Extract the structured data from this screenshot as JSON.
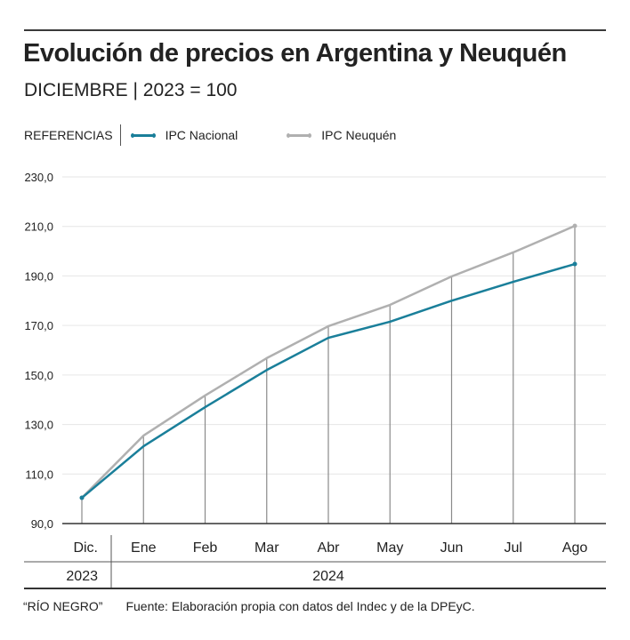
{
  "header": {
    "title": "Evolución de precios en Argentina y Neuquén",
    "subtitle": "DICIEMBRE | 2023 = 100"
  },
  "legend": {
    "label": "REFERENCIAS",
    "items": [
      {
        "name": "IPC Nacional",
        "color": "#1a7f9a"
      },
      {
        "name": "IPC Neuquén",
        "color": "#b0b0b0"
      }
    ]
  },
  "chart_data": {
    "type": "line",
    "title": "Evolución de precios en Argentina y Neuquén",
    "subtitle": "DICIEMBRE | 2023 = 100",
    "categories": [
      "Dic.",
      "Ene",
      "Feb",
      "Mar",
      "Abr",
      "May",
      "Jun",
      "Jul",
      "Ago"
    ],
    "year_groups": [
      {
        "label": "2023",
        "span": 1
      },
      {
        "label": "2024",
        "span": 8
      }
    ],
    "series": [
      {
        "name": "IPC Nacional",
        "color": "#1a7f9a",
        "values": [
          100.4,
          121.2,
          137.0,
          152.0,
          165.0,
          171.5,
          180.0,
          187.6,
          194.8
        ]
      },
      {
        "name": "IPC Neuquén",
        "color": "#b0b0b0",
        "values": [
          100.4,
          125.5,
          141.7,
          156.8,
          169.7,
          178.3,
          189.8,
          199.5,
          210.2
        ]
      }
    ],
    "y_ticks": [
      "230,0",
      "210,0",
      "190,0",
      "170,0",
      "150,0",
      "130,0",
      "110,0",
      "90,0"
    ],
    "y_tick_values": [
      230,
      210,
      190,
      170,
      150,
      130,
      110,
      90
    ],
    "ylim": [
      90,
      230
    ],
    "xlabel": "",
    "ylabel": "",
    "grid": true,
    "legend_position": "top-left"
  },
  "footer": {
    "credit": "“RÍO NEGRO”",
    "source": "Fuente: Elaboración propia con datos del Indec y de la DPEyC."
  }
}
